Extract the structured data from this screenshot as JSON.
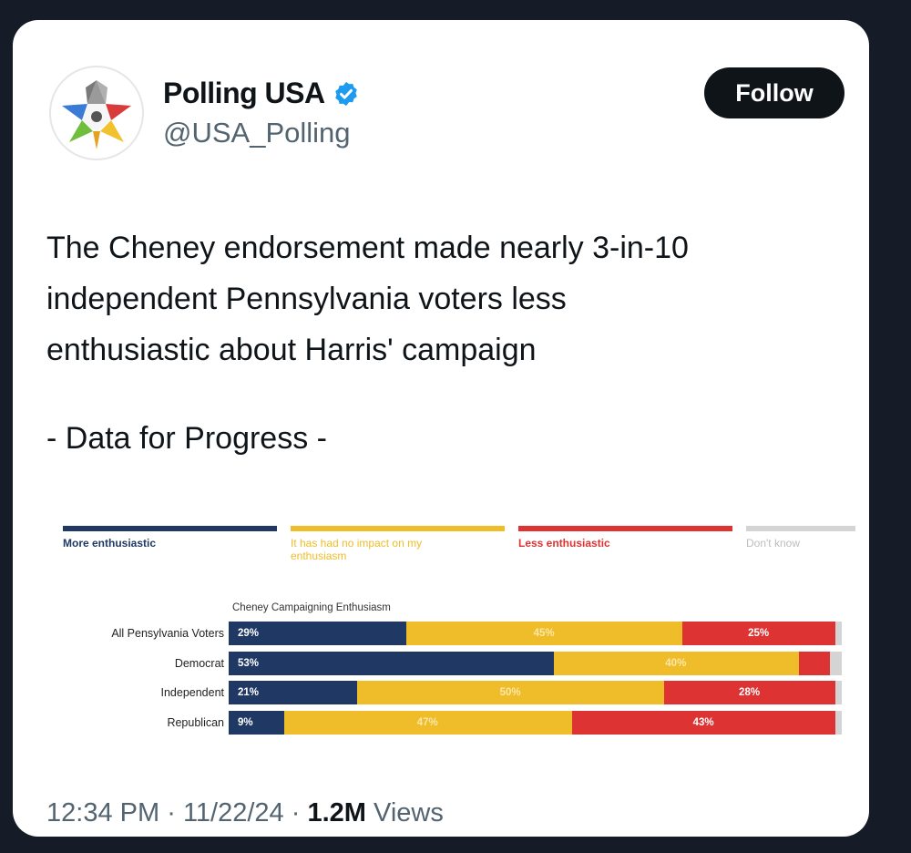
{
  "account": {
    "name": "Polling USA",
    "handle": "@USA_Polling",
    "verified": true,
    "avatar_icon": "polling-usa-logo-icon"
  },
  "follow_label": "Follow",
  "tweet": {
    "text": "The Cheney endorsement made nearly 3-in-10\nindependent Pennsylvania voters less\nenthusiastic about Harris' campaign",
    "source": "- Data for Progress -"
  },
  "footer": {
    "time": "12:34 PM",
    "date": "11/22/24",
    "sep": "·",
    "views_count": "1.2M",
    "views_label": "Views"
  },
  "colors": {
    "more": "#1f3864",
    "no_impact": "#efbc2a",
    "less": "#dd3333",
    "dont_know": "#d4d4d4",
    "verified": "#1d9bf0"
  },
  "chart_data": {
    "type": "bar",
    "orientation": "horizontal",
    "stacked": true,
    "subtitle": "Cheney Campaigning Enthusiasm",
    "categories": [
      "All Pensylvania Voters",
      "Democrat",
      "Independent",
      "Republican"
    ],
    "series": [
      {
        "name": "More enthusiastic",
        "color_key": "more",
        "values": [
          29,
          53,
          21,
          9
        ],
        "labels": [
          "29%",
          "53%",
          "21%",
          "9%"
        ]
      },
      {
        "name": "It has had no impact on my enthusiasm",
        "color_key": "no_impact",
        "values": [
          45,
          40,
          50,
          47
        ],
        "labels": [
          "45%",
          "40%",
          "50%",
          "47%"
        ]
      },
      {
        "name": "Less enthusiastic",
        "color_key": "less",
        "values": [
          25,
          5,
          28,
          43
        ],
        "labels": [
          "25%",
          "",
          "28%",
          "43%"
        ]
      },
      {
        "name": "Don't know",
        "color_key": "dont_know",
        "values": [
          1,
          2,
          1,
          1
        ],
        "labels": [
          "",
          "",
          "",
          ""
        ]
      }
    ],
    "legend_position": "top",
    "xlim": [
      0,
      100
    ]
  }
}
